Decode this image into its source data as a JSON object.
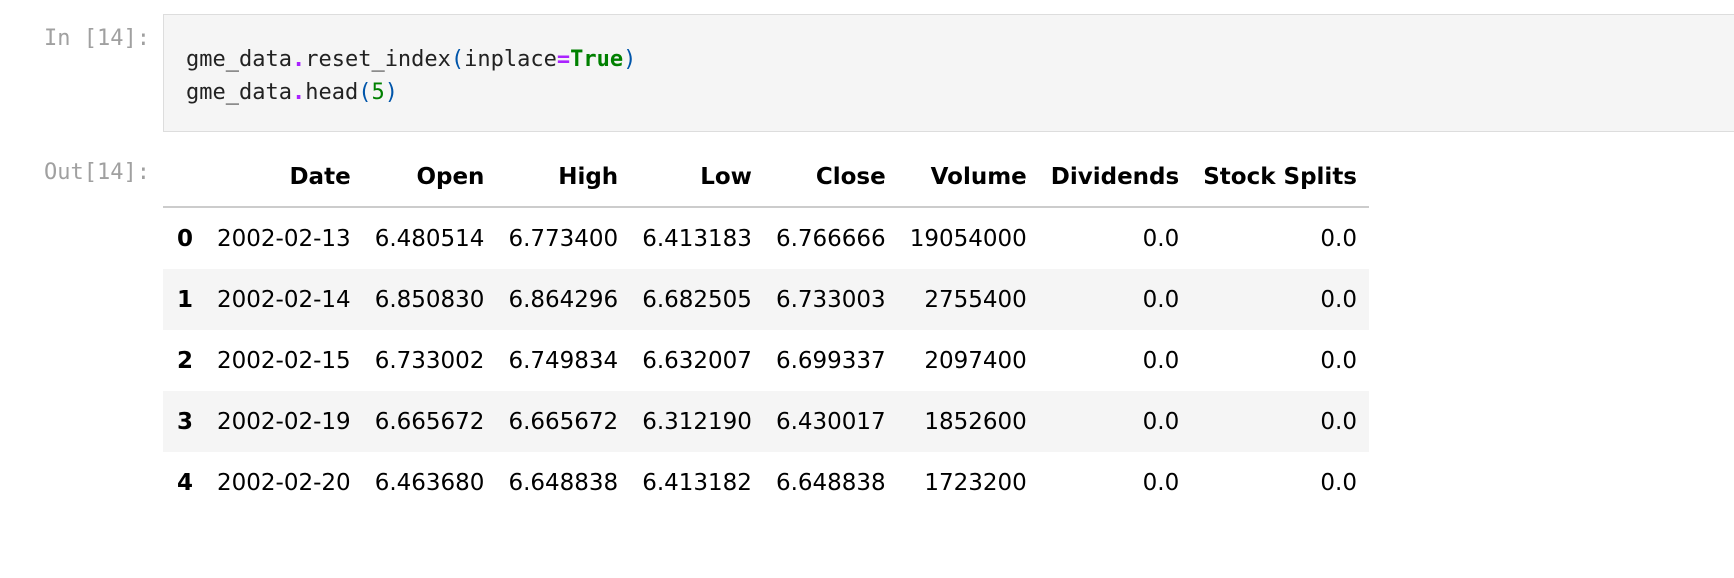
{
  "notebook": {
    "in_prompt": "In [14]:",
    "out_prompt": "Out[14]:",
    "code": {
      "line1": {
        "var": "gme_data",
        "dot": ".",
        "method": "reset_index",
        "open": "(",
        "arg": "inplace",
        "eq": "=",
        "value": "True",
        "close": ")"
      },
      "line2": {
        "var": "gme_data",
        "dot": ".",
        "method": "head",
        "open": "(",
        "value": "5",
        "close": ")"
      }
    }
  },
  "table": {
    "columns": [
      "",
      "Date",
      "Open",
      "High",
      "Low",
      "Close",
      "Volume",
      "Dividends",
      "Stock Splits"
    ],
    "rows": [
      [
        "0",
        "2002-02-13",
        "6.480514",
        "6.773400",
        "6.413183",
        "6.766666",
        "19054000",
        "0.0",
        "0.0"
      ],
      [
        "1",
        "2002-02-14",
        "6.850830",
        "6.864296",
        "6.682505",
        "6.733003",
        "2755400",
        "0.0",
        "0.0"
      ],
      [
        "2",
        "2002-02-15",
        "6.733002",
        "6.749834",
        "6.632007",
        "6.699337",
        "2097400",
        "0.0",
        "0.0"
      ],
      [
        "3",
        "2002-02-19",
        "6.665672",
        "6.665672",
        "6.312190",
        "6.430017",
        "1852600",
        "0.0",
        "0.0"
      ],
      [
        "4",
        "2002-02-20",
        "6.463680",
        "6.648838",
        "6.413182",
        "6.648838",
        "1723200",
        "0.0",
        "0.0"
      ]
    ]
  }
}
